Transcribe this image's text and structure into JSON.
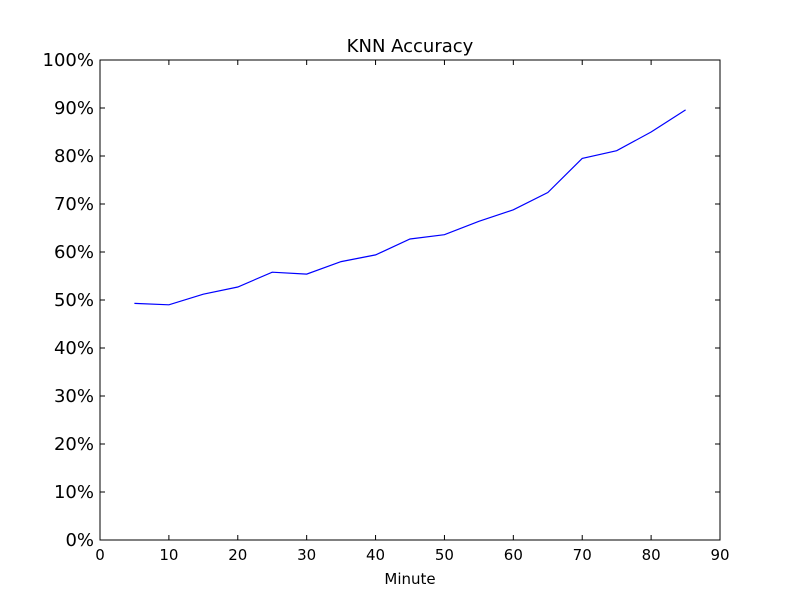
{
  "chart_data": {
    "type": "line",
    "title": "KNN Accuracy",
    "xlabel": "Minute",
    "ylabel": "",
    "xlim": [
      0,
      90
    ],
    "ylim": [
      0,
      1
    ],
    "grid": false,
    "x_ticks": [
      0,
      10,
      20,
      30,
      40,
      50,
      60,
      70,
      80,
      90
    ],
    "x_tick_labels": [
      "0",
      "10",
      "20",
      "30",
      "40",
      "50",
      "60",
      "70",
      "80",
      "90"
    ],
    "y_ticks": [
      0,
      0.1,
      0.2,
      0.3,
      0.4,
      0.5,
      0.6,
      0.7,
      0.8,
      0.9,
      1.0
    ],
    "y_tick_labels": [
      "0%",
      "10%",
      "20%",
      "30%",
      "40%",
      "50%",
      "60%",
      "70%",
      "80%",
      "90%",
      "100%"
    ],
    "series": [
      {
        "color": "#0000ff",
        "x": [
          5,
          10,
          15,
          20,
          25,
          30,
          35,
          40,
          45,
          50,
          55,
          60,
          65,
          70,
          75,
          80,
          85
        ],
        "y": [
          0.493,
          0.49,
          0.512,
          0.527,
          0.558,
          0.554,
          0.58,
          0.594,
          0.627,
          0.636,
          0.664,
          0.688,
          0.724,
          0.795,
          0.811,
          0.85,
          0.896
        ]
      }
    ]
  }
}
